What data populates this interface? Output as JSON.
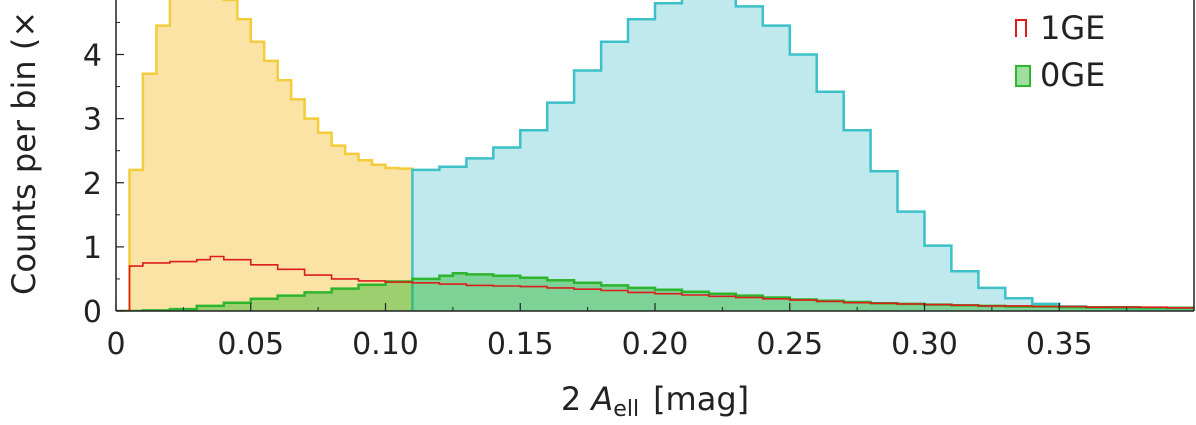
{
  "chart_data": {
    "type": "histogram",
    "xlabel": {
      "prefix": "2 ",
      "symbol": "A",
      "subscript": "ell",
      "unit": "[mag]"
    },
    "ylabel": "Counts per bin (×",
    "xlim": [
      0,
      0.4
    ],
    "ylim": [
      0,
      4.85
    ],
    "x_ticks": [
      0,
      0.05,
      0.1,
      0.15,
      0.2,
      0.25,
      0.3,
      0.35
    ],
    "x_tick_labels": [
      "0",
      "0.05",
      "0.10",
      "0.15",
      "0.20",
      "0.25",
      "0.30",
      "0.35"
    ],
    "y_ticks": [
      0,
      1,
      2,
      3,
      4
    ],
    "y_tick_labels": [
      "0",
      "1",
      "2",
      "3",
      "4"
    ],
    "legend": {
      "placement": "top-right",
      "entries": [
        {
          "label": "1GE",
          "style": "step",
          "color": "#dd1c1c"
        },
        {
          "label": "0GE",
          "style": "filled",
          "color": "#2db52d"
        }
      ]
    },
    "series": [
      {
        "style": "step-filled",
        "color": "#f3cc3c",
        "fill": "#fbe3a6",
        "x": [
          0.0,
          0.005,
          0.01,
          0.015,
          0.02,
          0.025,
          0.03,
          0.035,
          0.04,
          0.045,
          0.05,
          0.055,
          0.06,
          0.065,
          0.07,
          0.075,
          0.08,
          0.085,
          0.09,
          0.095,
          0.1,
          0.105,
          0.11
        ],
        "y": [
          0.0,
          2.2,
          3.7,
          4.45,
          4.95,
          5.2,
          5.3,
          5.15,
          4.85,
          4.55,
          4.2,
          3.9,
          3.6,
          3.3,
          3.0,
          2.78,
          2.58,
          2.45,
          2.35,
          2.28,
          2.23,
          2.22,
          2.2
        ]
      },
      {
        "style": "step-filled",
        "color": "#3cc1c8",
        "fill": "#bfe9ec",
        "x": [
          0.11,
          0.12,
          0.13,
          0.14,
          0.15,
          0.16,
          0.17,
          0.18,
          0.19,
          0.2,
          0.21,
          0.215,
          0.22,
          0.23,
          0.24,
          0.25,
          0.26,
          0.27,
          0.28,
          0.29,
          0.3,
          0.31,
          0.32,
          0.33,
          0.34,
          0.35,
          0.36,
          0.37,
          0.38,
          0.39,
          0.4
        ],
        "y": [
          2.2,
          2.25,
          2.38,
          2.55,
          2.82,
          3.25,
          3.75,
          4.2,
          4.55,
          4.8,
          4.95,
          5.0,
          4.88,
          4.75,
          4.45,
          4.0,
          3.42,
          2.82,
          2.18,
          1.55,
          1.02,
          0.62,
          0.36,
          0.2,
          0.11,
          0.07,
          0.05,
          0.04,
          0.04,
          0.04,
          0.04
        ]
      },
      {
        "name": "0GE",
        "style": "step-filled",
        "color": "#2db52d",
        "fill": "rgba(45,181,45,0.45)",
        "x": [
          0.0,
          0.01,
          0.02,
          0.03,
          0.04,
          0.05,
          0.06,
          0.07,
          0.08,
          0.09,
          0.1,
          0.11,
          0.12,
          0.125,
          0.13,
          0.14,
          0.15,
          0.16,
          0.17,
          0.18,
          0.19,
          0.2,
          0.21,
          0.22,
          0.23,
          0.24,
          0.25,
          0.26,
          0.27,
          0.28,
          0.29,
          0.3,
          0.31,
          0.32,
          0.33,
          0.34,
          0.35,
          0.36,
          0.37,
          0.38,
          0.39,
          0.4
        ],
        "y": [
          0.0,
          0.01,
          0.03,
          0.08,
          0.13,
          0.19,
          0.24,
          0.29,
          0.35,
          0.41,
          0.46,
          0.5,
          0.55,
          0.59,
          0.57,
          0.55,
          0.52,
          0.48,
          0.44,
          0.4,
          0.36,
          0.33,
          0.3,
          0.27,
          0.24,
          0.21,
          0.18,
          0.16,
          0.14,
          0.12,
          0.11,
          0.1,
          0.09,
          0.08,
          0.07,
          0.07,
          0.06,
          0.06,
          0.06,
          0.05,
          0.05,
          0.05
        ]
      },
      {
        "name": "1GE",
        "style": "step",
        "color": "#dd1c1c",
        "x": [
          0.0,
          0.005,
          0.01,
          0.02,
          0.03,
          0.035,
          0.04,
          0.05,
          0.06,
          0.07,
          0.08,
          0.09,
          0.1,
          0.11,
          0.12,
          0.13,
          0.14,
          0.15,
          0.16,
          0.17,
          0.18,
          0.19,
          0.2,
          0.21,
          0.22,
          0.23,
          0.24,
          0.25,
          0.26,
          0.27,
          0.28,
          0.29,
          0.3,
          0.31,
          0.32,
          0.33,
          0.34,
          0.35,
          0.36,
          0.37,
          0.38,
          0.39,
          0.4
        ],
        "y": [
          0.0,
          0.7,
          0.75,
          0.77,
          0.8,
          0.85,
          0.8,
          0.72,
          0.65,
          0.56,
          0.5,
          0.47,
          0.45,
          0.44,
          0.42,
          0.4,
          0.39,
          0.38,
          0.36,
          0.34,
          0.32,
          0.29,
          0.27,
          0.25,
          0.23,
          0.21,
          0.19,
          0.17,
          0.15,
          0.13,
          0.12,
          0.11,
          0.1,
          0.09,
          0.08,
          0.08,
          0.07,
          0.07,
          0.06,
          0.06,
          0.06,
          0.05,
          0.05
        ]
      }
    ]
  }
}
